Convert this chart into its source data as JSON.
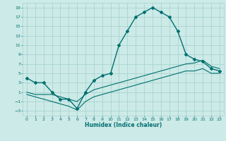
{
  "xlabel": "Humidex (Indice chaleur)",
  "x_ticks": [
    0,
    1,
    2,
    3,
    4,
    5,
    6,
    7,
    8,
    9,
    10,
    11,
    12,
    13,
    14,
    15,
    16,
    17,
    18,
    19,
    20,
    21,
    22,
    23
  ],
  "xlim": [
    -0.5,
    23.5
  ],
  "ylim": [
    -4,
    20
  ],
  "y_ticks": [
    -3,
    -1,
    1,
    3,
    5,
    7,
    9,
    11,
    13,
    15,
    17,
    19
  ],
  "bg_color": "#cceae7",
  "grid_color": "#aad4d0",
  "line_color": "#007070",
  "series1_x": [
    0,
    1,
    2,
    3,
    4,
    5,
    6,
    7,
    8,
    9,
    10,
    11,
    12,
    13,
    14,
    15,
    16,
    17,
    18,
    19,
    20,
    21,
    22,
    23
  ],
  "series1_y": [
    4,
    3,
    3,
    1,
    -0.5,
    -0.5,
    -2.5,
    1,
    3.5,
    4.5,
    5,
    11,
    14,
    17,
    18,
    19,
    18,
    17,
    14,
    9,
    8,
    7.5,
    6,
    5.5
  ],
  "series2_x": [
    0,
    1,
    2,
    3,
    4,
    5,
    6,
    7,
    8,
    9,
    10,
    11,
    12,
    13,
    14,
    15,
    16,
    17,
    18,
    19,
    20,
    21,
    22,
    23
  ],
  "series2_y": [
    1,
    0.5,
    0.5,
    0.5,
    0,
    -0.5,
    -1,
    0.5,
    1.5,
    2,
    2.5,
    3,
    3.5,
    4,
    4.5,
    5,
    5.5,
    6,
    6.5,
    7,
    7.2,
    7.8,
    6.5,
    6.0
  ],
  "series3_x": [
    0,
    1,
    2,
    3,
    4,
    5,
    6,
    7,
    8,
    9,
    10,
    11,
    12,
    13,
    14,
    15,
    16,
    17,
    18,
    19,
    20,
    21,
    22,
    23
  ],
  "series3_y": [
    0.5,
    0,
    -0.5,
    -1,
    -1.5,
    -2,
    -2.8,
    -1,
    0,
    0.5,
    1,
    1.5,
    2,
    2.5,
    3,
    3.5,
    4,
    4.5,
    5,
    5.5,
    5.5,
    6,
    5,
    5
  ]
}
